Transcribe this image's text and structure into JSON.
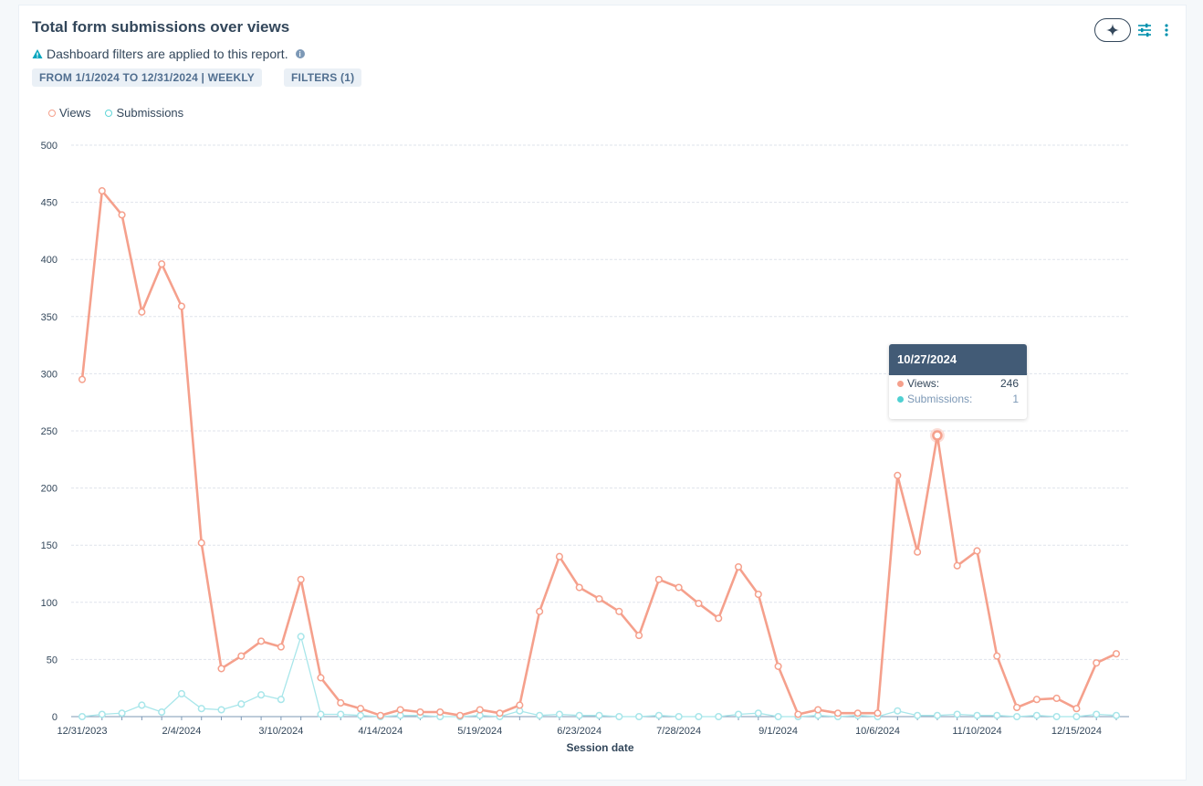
{
  "report": {
    "title": "Total form submissions over views",
    "notice": "Dashboard filters are applied to this report.",
    "date_tag": "FROM 1/1/2024 TO 12/31/2024 | WEEKLY",
    "filters_tag": "FILTERS (1)"
  },
  "toolbar": {
    "ai_icon": "sparkle-icon",
    "filter_icon": "sliders-icon",
    "more_icon": "vertical-ellipsis-icon"
  },
  "legend": [
    {
      "label": "Views",
      "color": "#f5a08c"
    },
    {
      "label": "Submissions",
      "color": "#60d6d8"
    }
  ],
  "tooltip": {
    "date": "10/27/2024",
    "rows": [
      {
        "label": "Views:",
        "value": "246",
        "color": "#f5a08c"
      },
      {
        "label": "Submissions:",
        "value": "1",
        "color": "#4fd0d2"
      }
    ]
  },
  "chart_data": {
    "type": "line",
    "xlabel": "Session date",
    "ylabel": "",
    "ylim": [
      0,
      500
    ],
    "yticks": [
      0,
      50,
      100,
      150,
      200,
      250,
      300,
      350,
      400,
      450,
      500
    ],
    "x_tick_labels": [
      "12/31/2023",
      "2/4/2024",
      "3/10/2024",
      "4/14/2024",
      "5/19/2024",
      "6/23/2024",
      "7/28/2024",
      "9/1/2024",
      "10/6/2024",
      "11/10/2024",
      "12/15/2024"
    ],
    "x_tick_every": 5,
    "grid": true,
    "legend_position": "top-left",
    "series": [
      {
        "name": "Views",
        "color": "#f5a08c",
        "values": [
          295,
          460,
          439,
          354,
          396,
          359,
          152,
          42,
          53,
          66,
          61,
          120,
          34,
          12,
          7,
          1,
          6,
          4,
          4,
          1,
          6,
          3,
          10,
          92,
          140,
          113,
          103,
          92,
          71,
          120,
          113,
          99,
          86,
          131,
          107,
          44,
          2,
          6,
          3,
          3,
          3,
          211,
          144,
          246,
          132,
          145,
          53,
          8,
          15,
          16,
          7,
          47,
          55
        ]
      },
      {
        "name": "Submissions",
        "color": "#a8e6ea",
        "values": [
          0,
          2,
          3,
          10,
          4,
          20,
          7,
          6,
          11,
          19,
          15,
          70,
          2,
          2,
          1,
          0,
          1,
          1,
          0,
          0,
          1,
          0,
          5,
          1,
          2,
          1,
          1,
          0,
          0,
          1,
          0,
          0,
          0,
          2,
          3,
          0,
          0,
          1,
          0,
          1,
          0,
          5,
          1,
          1,
          2,
          1,
          1,
          0,
          1,
          0,
          0,
          2,
          1
        ]
      }
    ],
    "highlight": {
      "series": "Views",
      "date": "10/27/2024",
      "value": 246
    }
  }
}
